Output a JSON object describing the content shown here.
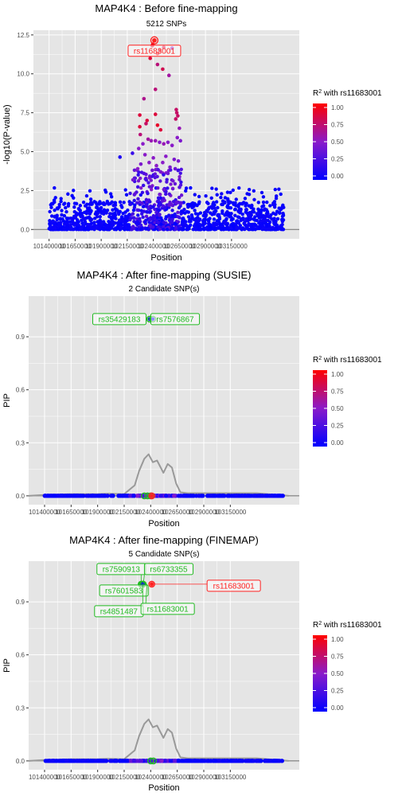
{
  "gene": "MAP4K4",
  "lead_snp": "rs11683001",
  "colors": {
    "panel_bg": "#e5e5e5",
    "grid": "#ffffff",
    "low": "#0000ff",
    "high": "#ff0000",
    "mid": "#8a1bc9",
    "label_green": "#22bb22",
    "label_red": "#ff2222",
    "curve": "#999999"
  },
  "chart_data": [
    {
      "type": "scatter",
      "title": "MAP4K4 : Before fine-mapping",
      "subtitle": "5212 SNPs",
      "xlabel": "Position",
      "ylabel": "-log10(P-value)",
      "xlim": [
        101250000,
        103800000
      ],
      "ylim": [
        -0.6,
        12.8
      ],
      "x_ticks": [
        101400000,
        101650000,
        101900000,
        102150000,
        102400000,
        102650000,
        102900000,
        103150000
      ],
      "x_tick_labels": [
        "101400000",
        "101650000",
        "101900000",
        "102150000",
        "102400000",
        "102650000",
        "102900000",
        "103150000"
      ],
      "y_ticks": [
        0,
        2.5,
        5,
        7.5,
        10,
        12.5
      ],
      "y_tick_labels": [
        "0.0",
        "2.5",
        "5.0",
        "7.5",
        "10.0",
        "12.5"
      ],
      "snp_count": 5212,
      "points_sampled": [
        {
          "x": 102410000,
          "y": 12.15,
          "r2": 1.0
        },
        {
          "x": 102395000,
          "y": 11.9,
          "r2": 0.98
        },
        {
          "x": 102440000,
          "y": 11.3,
          "r2": 0.95
        },
        {
          "x": 102460000,
          "y": 11.5,
          "r2": 0.9
        },
        {
          "x": 102500000,
          "y": 11.7,
          "r2": 0.85
        },
        {
          "x": 102390000,
          "y": 11.8,
          "r2": 0.9
        },
        {
          "x": 102370000,
          "y": 11.0,
          "r2": 0.85
        },
        {
          "x": 102440000,
          "y": 10.6,
          "r2": 0.7
        },
        {
          "x": 102490000,
          "y": 10.3,
          "r2": 0.8
        },
        {
          "x": 102580000,
          "y": 11.65,
          "r2": 0.5
        },
        {
          "x": 102550000,
          "y": 9.9,
          "r2": 0.6
        },
        {
          "x": 102420000,
          "y": 9.0,
          "r2": 0.7
        },
        {
          "x": 102310000,
          "y": 8.4,
          "r2": 0.65
        },
        {
          "x": 102270000,
          "y": 7.35,
          "r2": 0.85
        },
        {
          "x": 102420000,
          "y": 7.4,
          "r2": 0.85
        },
        {
          "x": 102620000,
          "y": 7.7,
          "r2": 0.75
        },
        {
          "x": 102625000,
          "y": 7.5,
          "r2": 0.75
        },
        {
          "x": 102635000,
          "y": 7.3,
          "r2": 0.75
        },
        {
          "x": 102615000,
          "y": 7.1,
          "r2": 0.75
        },
        {
          "x": 102650000,
          "y": 6.5,
          "r2": 0.55
        },
        {
          "x": 102340000,
          "y": 7.0,
          "r2": 0.85
        },
        {
          "x": 102330000,
          "y": 6.8,
          "r2": 0.75
        },
        {
          "x": 102270000,
          "y": 6.6,
          "r2": 0.85
        },
        {
          "x": 102275000,
          "y": 6.1,
          "r2": 0.7
        },
        {
          "x": 102440000,
          "y": 6.7,
          "r2": 0.9
        },
        {
          "x": 102470000,
          "y": 6.4,
          "r2": 0.85
        },
        {
          "x": 102350000,
          "y": 5.8,
          "r2": 0.6
        },
        {
          "x": 102380000,
          "y": 5.7,
          "r2": 0.55
        },
        {
          "x": 102420000,
          "y": 5.7,
          "r2": 0.55
        },
        {
          "x": 102460000,
          "y": 5.6,
          "r2": 0.5
        },
        {
          "x": 102500000,
          "y": 5.5,
          "r2": 0.55
        },
        {
          "x": 102540000,
          "y": 5.6,
          "r2": 0.5
        },
        {
          "x": 102580000,
          "y": 5.4,
          "r2": 0.5
        },
        {
          "x": 102630000,
          "y": 5.9,
          "r2": 0.5
        },
        {
          "x": 102660000,
          "y": 5.7,
          "r2": 0.45
        },
        {
          "x": 102300000,
          "y": 5.5,
          "r2": 0.5
        },
        {
          "x": 102260000,
          "y": 5.2,
          "r2": 0.5
        },
        {
          "x": 102200000,
          "y": 4.9,
          "r2": 0.2
        },
        {
          "x": 102080000,
          "y": 4.65,
          "r2": 0.1
        },
        {
          "x": 102320000,
          "y": 4.8,
          "r2": 0.5
        },
        {
          "x": 102400000,
          "y": 4.6,
          "r2": 0.5
        },
        {
          "x": 102520000,
          "y": 4.7,
          "r2": 0.5
        },
        {
          "x": 102600000,
          "y": 4.5,
          "r2": 0.45
        },
        {
          "x": 102280000,
          "y": 4.2,
          "r2": 0.45
        },
        {
          "x": 102360000,
          "y": 4.3,
          "r2": 0.5
        },
        {
          "x": 102430000,
          "y": 4.1,
          "r2": 0.5
        },
        {
          "x": 102490000,
          "y": 4.3,
          "r2": 0.5
        },
        {
          "x": 102560000,
          "y": 4.0,
          "r2": 0.45
        },
        {
          "x": 102640000,
          "y": 4.4,
          "r2": 0.45
        },
        {
          "x": 102250000,
          "y": 3.9,
          "r2": 0.5
        },
        {
          "x": 102310000,
          "y": 3.6,
          "r2": 0.3
        },
        {
          "x": 102390000,
          "y": 3.8,
          "r2": 0.4
        },
        {
          "x": 102470000,
          "y": 3.7,
          "r2": 0.45
        },
        {
          "x": 102540000,
          "y": 3.6,
          "r2": 0.4
        },
        {
          "x": 102610000,
          "y": 3.9,
          "r2": 0.4
        }
      ],
      "annotations": [
        {
          "label": "rs11683001",
          "x": 102410000,
          "y": 12.15
        }
      ],
      "legend": {
        "title": "R² with rs11683001",
        "ticks": [
          1.0,
          0.75,
          0.5,
          0.25,
          0.0
        ],
        "tick_labels": [
          "1.00",
          "0.75",
          "0.50",
          "0.25",
          "0.00"
        ],
        "placement": "right"
      }
    },
    {
      "type": "scatter",
      "title": "MAP4K4 : After fine-mapping (SUSIE)",
      "subtitle": "2 Candidate SNP(s)",
      "xlabel": "Position",
      "ylabel": "PIP",
      "xlim": [
        101250000,
        103800000
      ],
      "ylim": [
        -0.05,
        1.13
      ],
      "x_ticks": [
        101400000,
        101650000,
        101900000,
        102150000,
        102400000,
        102650000,
        102900000,
        103150000
      ],
      "x_tick_labels": [
        "101400000",
        "101650000",
        "101900000",
        "102150000",
        "102400000",
        "102650000",
        "102900000",
        "103150000"
      ],
      "y_ticks": [
        0,
        0.3,
        0.6,
        0.9
      ],
      "y_tick_labels": [
        "0.0",
        "0.3",
        "0.6",
        "0.9"
      ],
      "candidates": [
        {
          "label": "rs35429183",
          "x": 102390000,
          "pip": 1.0
        },
        {
          "label": "rs7576867",
          "x": 102420000,
          "pip": 1.0
        }
      ],
      "lead": {
        "label": "rs11683001",
        "x": 102410000,
        "pip": 0.0
      },
      "zero_circles_x": [
        102340000,
        102370000,
        102400000
      ],
      "density_curve": {
        "x": [
          101250000,
          101400000,
          101650000,
          101900000,
          102000000,
          102150000,
          102250000,
          102290000,
          102340000,
          102380000,
          102420000,
          102460000,
          102520000,
          102560000,
          102600000,
          102640000,
          102680000,
          102750000,
          102900000,
          103100000,
          103400000,
          103700000
        ],
        "y": [
          0.0,
          0.005,
          0.01,
          0.01,
          0.012,
          0.01,
          0.06,
          0.14,
          0.21,
          0.235,
          0.19,
          0.2,
          0.13,
          0.18,
          0.16,
          0.07,
          0.02,
          0.015,
          0.015,
          0.015,
          0.015,
          0.0
        ]
      },
      "legend": {
        "title": "R² with rs11683001",
        "ticks": [
          1.0,
          0.75,
          0.5,
          0.25,
          0.0
        ],
        "tick_labels": [
          "1.00",
          "0.75",
          "0.50",
          "0.25",
          "0.00"
        ],
        "placement": "right"
      }
    },
    {
      "type": "scatter",
      "title": "MAP4K4 : After fine-mapping (FINEMAP)",
      "subtitle": "5 Candidate SNP(s)",
      "xlabel": "Position",
      "ylabel": "PIP",
      "xlim": [
        101250000,
        103800000
      ],
      "ylim": [
        -0.05,
        1.13
      ],
      "x_ticks": [
        101400000,
        101650000,
        101900000,
        102150000,
        102400000,
        102650000,
        102900000,
        103150000
      ],
      "x_tick_labels": [
        "101400000",
        "101650000",
        "101900000",
        "102150000",
        "102400000",
        "102650000",
        "102900000",
        "103150000"
      ],
      "y_ticks": [
        0,
        0.3,
        0.6,
        0.9
      ],
      "y_tick_labels": [
        "0.0",
        "0.3",
        "0.6",
        "0.9"
      ],
      "candidates": [
        {
          "label": "rs7590913",
          "x": 102310000,
          "pip": 1.0
        },
        {
          "label": "rs6733355",
          "x": 102330000,
          "pip": 1.0
        },
        {
          "label": "rs7601583",
          "x": 102320000,
          "pip": 1.0
        },
        {
          "label": "rs4851487",
          "x": 102325000,
          "pip": 1.0
        },
        {
          "label": "rs11683001",
          "x": 102410000,
          "pip": 1.0,
          "lead": true
        }
      ],
      "zero_circles_x": [
        102400000,
        102425000
      ],
      "density_curve": {
        "x": [
          101250000,
          101400000,
          101650000,
          101900000,
          102000000,
          102150000,
          102250000,
          102290000,
          102340000,
          102380000,
          102420000,
          102460000,
          102520000,
          102560000,
          102600000,
          102640000,
          102680000,
          102750000,
          102900000,
          103100000,
          103400000,
          103700000
        ],
        "y": [
          0.0,
          0.005,
          0.01,
          0.01,
          0.012,
          0.01,
          0.06,
          0.14,
          0.21,
          0.235,
          0.19,
          0.2,
          0.13,
          0.18,
          0.16,
          0.07,
          0.02,
          0.015,
          0.015,
          0.015,
          0.015,
          0.0
        ]
      },
      "legend": {
        "title": "R² with rs11683001",
        "ticks": [
          1.0,
          0.75,
          0.5,
          0.25,
          0.0
        ],
        "tick_labels": [
          "1.00",
          "0.75",
          "0.50",
          "0.25",
          "0.00"
        ],
        "placement": "right"
      }
    }
  ]
}
